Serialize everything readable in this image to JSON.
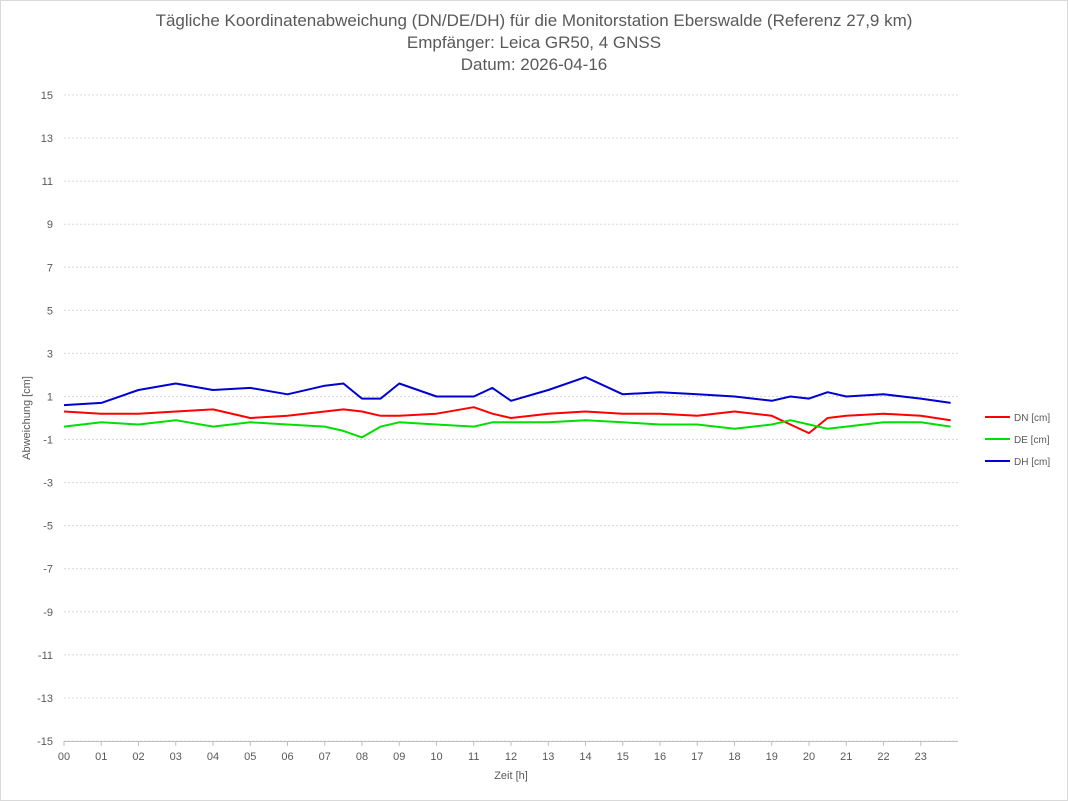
{
  "title_lines": [
    "Tägliche Koordinatenabweichung (DN/DE/DH) für die Monitorstation Eberswalde (Referenz 27,9 km)",
    "Empfänger: Leica GR50, 4 GNSS",
    "Datum: 2026-04-16"
  ],
  "chart_data": {
    "type": "line",
    "title": "Tägliche Koordinatenabweichung (DN/DE/DH) für die Monitorstation Eberswalde (Referenz 27,9 km)",
    "xlabel": "Zeit [h]",
    "ylabel": "Abweichung [cm]",
    "xlim": [
      0,
      24
    ],
    "ylim": [
      -15,
      15
    ],
    "x_ticks": [
      "00",
      "01",
      "02",
      "03",
      "04",
      "05",
      "06",
      "07",
      "08",
      "09",
      "10",
      "11",
      "12",
      "13",
      "14",
      "15",
      "16",
      "17",
      "18",
      "19",
      "20",
      "21",
      "22",
      "23"
    ],
    "y_ticks": [
      15,
      13,
      11,
      9,
      7,
      5,
      3,
      1,
      -1,
      -3,
      -5,
      -7,
      -9,
      -11,
      -13,
      -15
    ],
    "grid": true,
    "legend_position": "right",
    "series": [
      {
        "name": "DN [cm]",
        "color": "#ff0000",
        "x": [
          0.0,
          1.0,
          2.0,
          3.0,
          4.0,
          5.0,
          6.0,
          7.0,
          7.5,
          8.0,
          8.5,
          9.0,
          10.0,
          11.0,
          11.5,
          12.0,
          13.0,
          14.0,
          15.0,
          16.0,
          17.0,
          18.0,
          19.0,
          19.5,
          20.0,
          20.5,
          21.0,
          22.0,
          23.0,
          23.8
        ],
        "y": [
          0.3,
          0.2,
          0.2,
          0.3,
          0.4,
          0.0,
          0.1,
          0.3,
          0.4,
          0.3,
          0.1,
          0.1,
          0.2,
          0.5,
          0.2,
          0.0,
          0.2,
          0.3,
          0.2,
          0.2,
          0.1,
          0.3,
          0.1,
          -0.3,
          -0.7,
          0.0,
          0.1,
          0.2,
          0.1,
          -0.1
        ]
      },
      {
        "name": "DE [cm]",
        "color": "#00e000",
        "x": [
          0.0,
          1.0,
          2.0,
          3.0,
          4.0,
          5.0,
          6.0,
          7.0,
          7.5,
          8.0,
          8.5,
          9.0,
          10.0,
          11.0,
          11.5,
          12.0,
          13.0,
          14.0,
          15.0,
          16.0,
          17.0,
          18.0,
          19.0,
          19.5,
          20.0,
          20.5,
          21.0,
          22.0,
          23.0,
          23.8
        ],
        "y": [
          -0.4,
          -0.2,
          -0.3,
          -0.1,
          -0.4,
          -0.2,
          -0.3,
          -0.4,
          -0.6,
          -0.9,
          -0.4,
          -0.2,
          -0.3,
          -0.4,
          -0.2,
          -0.2,
          -0.2,
          -0.1,
          -0.2,
          -0.3,
          -0.3,
          -0.5,
          -0.3,
          -0.1,
          -0.3,
          -0.5,
          -0.4,
          -0.2,
          -0.2,
          -0.4
        ]
      },
      {
        "name": "DH [cm]",
        "color": "#0000d0",
        "x": [
          0.0,
          1.0,
          2.0,
          3.0,
          4.0,
          5.0,
          6.0,
          7.0,
          7.5,
          8.0,
          8.5,
          9.0,
          10.0,
          11.0,
          11.5,
          12.0,
          13.0,
          14.0,
          15.0,
          16.0,
          17.0,
          18.0,
          19.0,
          19.5,
          20.0,
          20.5,
          21.0,
          22.0,
          23.0,
          23.8
        ],
        "y": [
          0.6,
          0.7,
          1.3,
          1.6,
          1.3,
          1.4,
          1.1,
          1.5,
          1.6,
          0.9,
          0.9,
          1.6,
          1.0,
          1.0,
          1.4,
          0.8,
          1.3,
          1.9,
          1.1,
          1.2,
          1.1,
          1.0,
          0.8,
          1.0,
          0.9,
          1.2,
          1.0,
          1.1,
          0.9,
          0.7
        ]
      }
    ]
  }
}
